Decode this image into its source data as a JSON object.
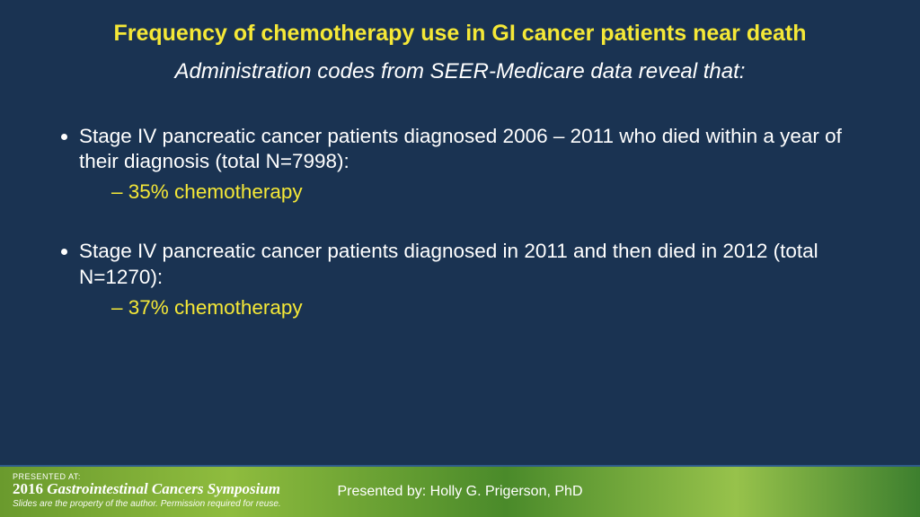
{
  "colors": {
    "background": "#1a3352",
    "accent_yellow": "#f5e837",
    "text_white": "#ffffff",
    "footer_gradient_stops": [
      "#6a9a2d",
      "#8fbc3e",
      "#4a8a2a",
      "#97c24b",
      "#3d7f2e"
    ],
    "footer_border": "#2d5a8a"
  },
  "typography": {
    "title_fontsize": 25,
    "subtitle_fontsize": 24,
    "body_fontsize": 22.5,
    "footer_presenter_fontsize": 16,
    "conf_title_fontsize": 17
  },
  "title": "Frequency of chemotherapy use in GI cancer patients near death",
  "subtitle": "Administration codes from SEER-Medicare data reveal that:",
  "bullets": [
    {
      "text": "Stage IV pancreatic cancer patients diagnosed  2006 – 2011 who died within a year of their diagnosis (total N=7998):",
      "sub": "35% chemotherapy"
    },
    {
      "text": "Stage IV pancreatic cancer patients diagnosed in 2011 and then died in 2012 (total N=1270):",
      "sub": "37% chemotherapy"
    }
  ],
  "footer": {
    "presented_at_label": "PRESENTED AT:",
    "conference_year": "2016",
    "conference_name": "Gastrointestinal Cancers Symposium",
    "rights_note": "Slides are the property of the author. Permission required for reuse.",
    "presenter_line": "Presented by: Holly G. Prigerson, PhD"
  }
}
